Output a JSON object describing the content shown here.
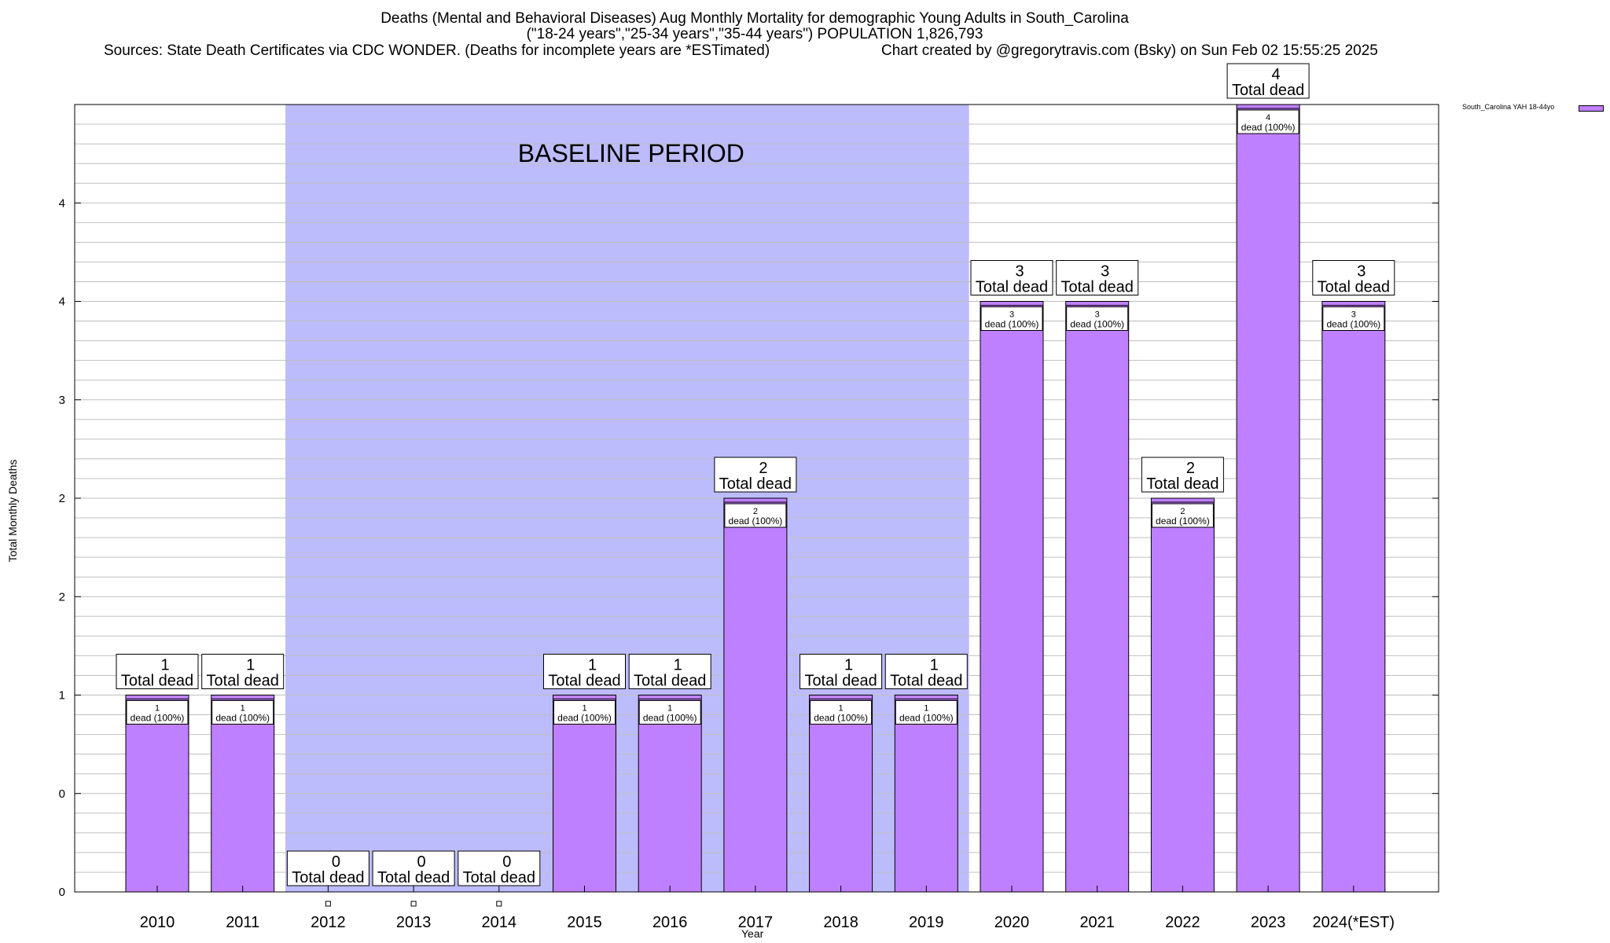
{
  "chart_data": {
    "type": "bar",
    "title_line1": "Deaths (Mental and Behavioral Diseases) Aug Monthly Mortality for demographic Young Adults in South_Carolina",
    "title_line2": "(\"18-24 years\",\"25-34 years\",\"35-44 years\") POPULATION 1,826,793",
    "sources": "Sources: State Death Certificates via CDC WONDER. (Deaths for incomplete years are *ESTimated)",
    "credit": "Chart created by @gregorytravis.com (Bsky) on Sun Feb 02 15:55:25 2025",
    "xlabel": "Year",
    "ylabel": "Total Monthly Deaths",
    "ylim": [
      0,
      4
    ],
    "y_tick_labels": [
      "0",
      "0",
      "1",
      "2",
      "2",
      "3",
      "4",
      "4"
    ],
    "baseline_label": "BASELINE PERIOD",
    "baseline_range": [
      "2012",
      "2019"
    ],
    "categories": [
      "2010",
      "2011",
      "2012",
      "2013",
      "2014",
      "2015",
      "2016",
      "2017",
      "2018",
      "2019",
      "2020",
      "2021",
      "2022",
      "2023",
      "2024(*EST)"
    ],
    "series": [
      {
        "name": "South_Carolina YAH 18-44yo",
        "values": [
          1,
          1,
          0,
          0,
          0,
          1,
          1,
          2,
          1,
          1,
          3,
          3,
          2,
          4,
          3
        ]
      }
    ],
    "total_label": "Total dead",
    "inner_label": "dead (100%)",
    "grid": true,
    "legend_position": "top-right",
    "colors": {
      "bar": "#bf80ff",
      "baseline": "#bcbcfc"
    }
  }
}
